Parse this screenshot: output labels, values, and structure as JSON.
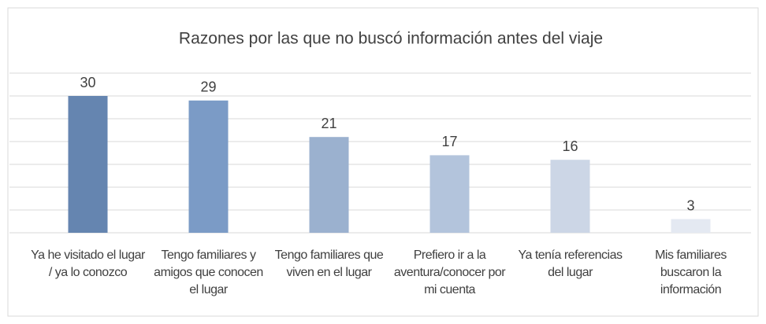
{
  "chart_data": {
    "type": "bar",
    "title": "Razones por las que no buscó información antes del viaje",
    "categories": [
      "Ya he visitado el lugar / ya lo conozco",
      "Tengo familiares y amigos que conocen el lugar",
      "Tengo familiares que viven en el lugar",
      "Prefiero ir a la aventura/conocer por mi cuenta",
      "Ya tenía referencias del lugar",
      "Mis familiares buscaron la información"
    ],
    "values": [
      30,
      29,
      21,
      17,
      16,
      3
    ],
    "colors": [
      "#6585b0",
      "#7b9bc6",
      "#9bb1cf",
      "#b3c4dc",
      "#ccd6e6",
      "#e4e9f2"
    ],
    "ylim": [
      0,
      35
    ],
    "yticks": [
      0,
      5,
      10,
      15,
      20,
      25,
      30,
      35
    ],
    "grid": true
  }
}
